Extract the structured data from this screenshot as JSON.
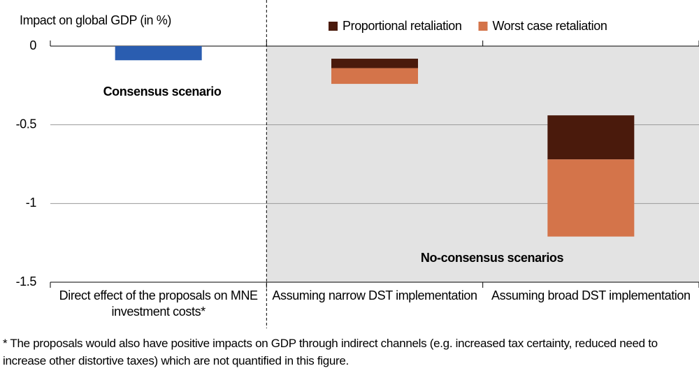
{
  "chart_data": {
    "type": "range-bar",
    "y_axis_title": "Impact on global GDP (in %)",
    "categories": [
      "Direct effect of the proposals on MNE investment costs*",
      "Assuming narrow DST implementation",
      "Assuming broad DST implementation"
    ],
    "series": [
      {
        "color": "#2a5db0",
        "values": [
          [
            0,
            -0.09
          ],
          null,
          null
        ]
      },
      {
        "name": "Proportional retaliation",
        "color": "#4a1a0c",
        "values": [
          null,
          [
            -0.08,
            -0.14
          ],
          [
            -0.44,
            -0.72
          ]
        ]
      },
      {
        "name": "Worst case retaliation",
        "color": "#d4744a",
        "values": [
          null,
          [
            -0.14,
            -0.24
          ],
          [
            -0.72,
            -1.21
          ]
        ]
      }
    ],
    "ylim": [
      -1.5,
      0
    ],
    "yticks": [
      0,
      -0.5,
      -1,
      -1.5
    ],
    "grid": true,
    "annotations": [
      "Consensus scenario",
      "No-consensus scenarios"
    ],
    "footnote": "* The proposals would also have positive impacts on GDP through indirect channels (e.g. increased tax certainty, reduced need to increase other distortive taxes) which are not quantified in this figure."
  }
}
